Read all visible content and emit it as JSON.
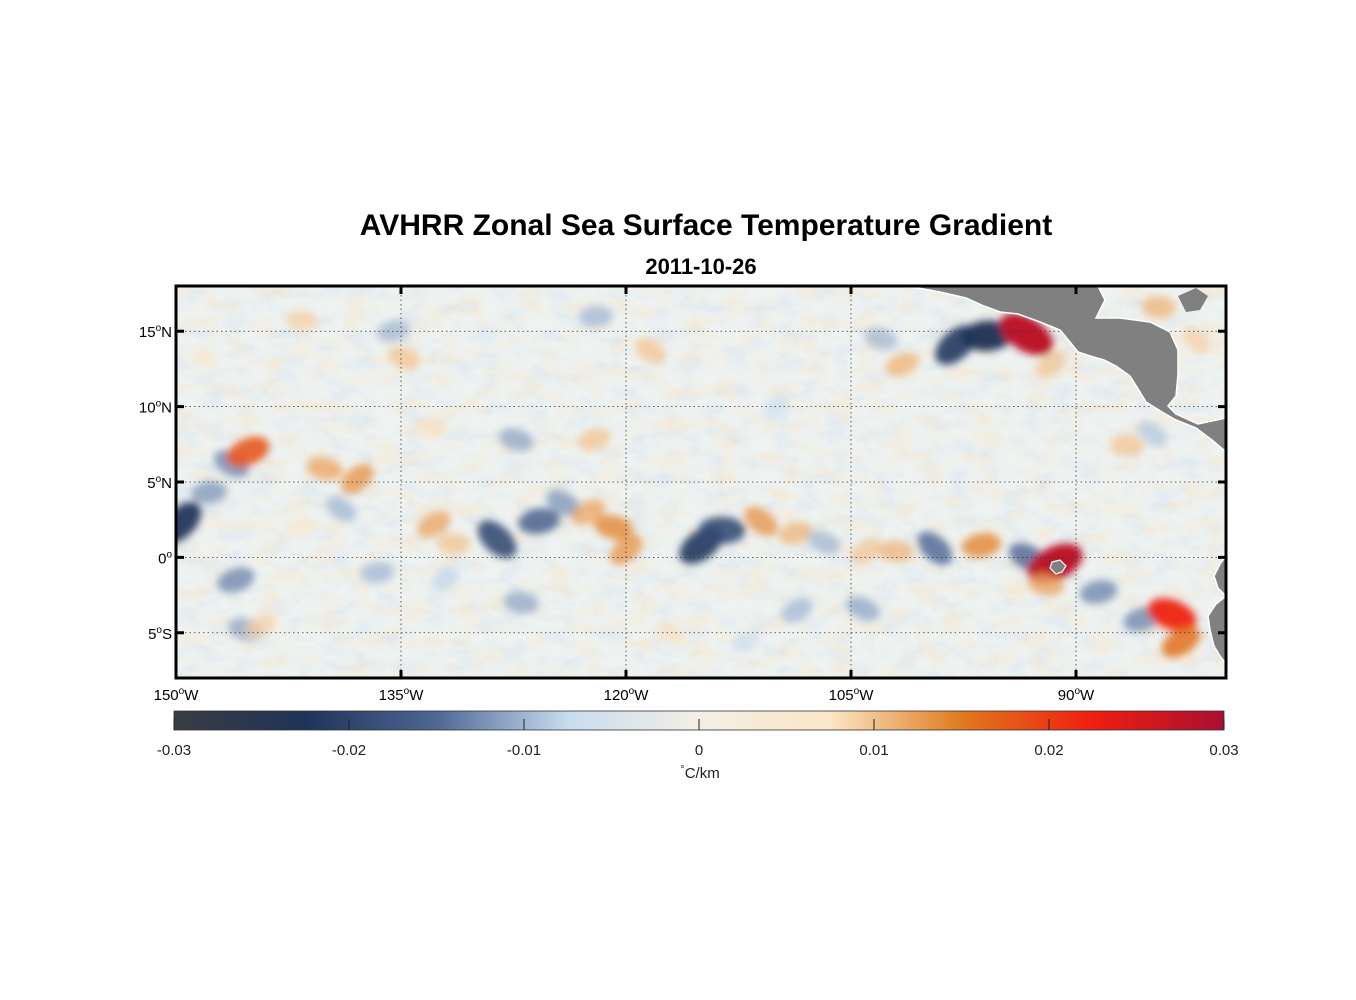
{
  "title": "AVHRR Zonal Sea Surface Temperature Gradient",
  "subtitle": "2011-10-26",
  "map": {
    "lon_range": [
      -150,
      -80
    ],
    "lat_range": [
      -8,
      18
    ],
    "grid": true,
    "land_color": "#808080",
    "lat_ticks": [
      {
        "value": 15,
        "num": "15",
        "hemi": "N"
      },
      {
        "value": 10,
        "num": "10",
        "hemi": "N"
      },
      {
        "value": 5,
        "num": "5",
        "hemi": "N"
      },
      {
        "value": 0,
        "num": "0",
        "hemi": ""
      },
      {
        "value": -5,
        "num": "5",
        "hemi": "S"
      }
    ],
    "lon_ticks": [
      {
        "value": -150,
        "num": "150",
        "hemi": "W"
      },
      {
        "value": -135,
        "num": "135",
        "hemi": "W"
      },
      {
        "value": -120,
        "num": "120",
        "hemi": "W"
      },
      {
        "value": -105,
        "num": "105",
        "hemi": "W"
      },
      {
        "value": -90,
        "num": "90",
        "hemi": "W"
      }
    ],
    "features": [
      {
        "lon": -149.7,
        "lat": 2.3,
        "v": -0.022
      },
      {
        "lon": -147.8,
        "lat": 4.3,
        "v": -0.012
      },
      {
        "lon": -146.3,
        "lat": 6.2,
        "v": -0.013
      },
      {
        "lon": -145.2,
        "lat": 7.0,
        "v": 0.018
      },
      {
        "lon": -140.1,
        "lat": 5.9,
        "v": 0.012
      },
      {
        "lon": -137.9,
        "lat": 5.2,
        "v": 0.013
      },
      {
        "lon": -141.8,
        "lat": 2.0,
        "v": 0.006
      },
      {
        "lon": -139.0,
        "lat": 3.2,
        "v": -0.01
      },
      {
        "lon": -146.0,
        "lat": -1.5,
        "v": -0.013
      },
      {
        "lon": -145.4,
        "lat": -4.8,
        "v": -0.011
      },
      {
        "lon": -144.4,
        "lat": -4.6,
        "v": 0.009
      },
      {
        "lon": -141.6,
        "lat": 15.7,
        "v": 0.009
      },
      {
        "lon": -148.0,
        "lat": 13.2,
        "v": 0.006
      },
      {
        "lon": -135.5,
        "lat": 15.0,
        "v": -0.01
      },
      {
        "lon": -134.8,
        "lat": 13.2,
        "v": 0.01
      },
      {
        "lon": -132.8,
        "lat": 2.2,
        "v": 0.012
      },
      {
        "lon": -131.5,
        "lat": 0.9,
        "v": 0.01
      },
      {
        "lon": -128.6,
        "lat": 1.2,
        "v": -0.019
      },
      {
        "lon": -125.8,
        "lat": 2.4,
        "v": -0.016
      },
      {
        "lon": -124.2,
        "lat": 3.6,
        "v": -0.012
      },
      {
        "lon": -122.5,
        "lat": 3.0,
        "v": 0.012
      },
      {
        "lon": -120.8,
        "lat": 2.0,
        "v": 0.014
      },
      {
        "lon": -120.0,
        "lat": 0.5,
        "v": 0.013
      },
      {
        "lon": -122.0,
        "lat": 16.0,
        "v": -0.01
      },
      {
        "lon": -118.4,
        "lat": 13.7,
        "v": 0.01
      },
      {
        "lon": -122.1,
        "lat": 7.8,
        "v": 0.01
      },
      {
        "lon": -127.3,
        "lat": 7.8,
        "v": -0.011
      },
      {
        "lon": -115.0,
        "lat": 0.8,
        "v": -0.021
      },
      {
        "lon": -113.6,
        "lat": 1.8,
        "v": -0.019
      },
      {
        "lon": -111.0,
        "lat": 2.4,
        "v": 0.013
      },
      {
        "lon": -108.7,
        "lat": 1.6,
        "v": 0.011
      },
      {
        "lon": -106.8,
        "lat": 1.0,
        "v": -0.01
      },
      {
        "lon": -104.0,
        "lat": 0.4,
        "v": 0.01
      },
      {
        "lon": -102.0,
        "lat": 0.4,
        "v": 0.011
      },
      {
        "lon": -99.4,
        "lat": 0.6,
        "v": -0.015
      },
      {
        "lon": -96.3,
        "lat": 0.8,
        "v": 0.014
      },
      {
        "lon": -93.2,
        "lat": 0.0,
        "v": -0.015
      },
      {
        "lon": -91.4,
        "lat": -0.4,
        "v": 0.028
      },
      {
        "lon": -92.0,
        "lat": -1.8,
        "v": 0.012
      },
      {
        "lon": -98.0,
        "lat": 14.1,
        "v": -0.021
      },
      {
        "lon": -95.9,
        "lat": 14.7,
        "v": -0.023
      },
      {
        "lon": -93.3,
        "lat": 14.8,
        "v": 0.028
      },
      {
        "lon": -101.6,
        "lat": 12.8,
        "v": 0.011
      },
      {
        "lon": -103.0,
        "lat": 14.5,
        "v": -0.01
      },
      {
        "lon": -91.7,
        "lat": 12.8,
        "v": 0.01
      },
      {
        "lon": -86.6,
        "lat": 7.4,
        "v": 0.01
      },
      {
        "lon": -84.9,
        "lat": 8.2,
        "v": -0.009
      },
      {
        "lon": -85.6,
        "lat": -4.1,
        "v": -0.013
      },
      {
        "lon": -83.6,
        "lat": -3.8,
        "v": 0.022
      },
      {
        "lon": -83.0,
        "lat": -5.6,
        "v": 0.016
      },
      {
        "lon": -84.5,
        "lat": 16.6,
        "v": 0.011
      },
      {
        "lon": -82.0,
        "lat": 14.4,
        "v": 0.009
      },
      {
        "lon": -88.5,
        "lat": -2.3,
        "v": -0.013
      },
      {
        "lon": -104.2,
        "lat": -3.4,
        "v": -0.011
      },
      {
        "lon": -108.6,
        "lat": -3.5,
        "v": -0.01
      },
      {
        "lon": -127.0,
        "lat": -3.0,
        "v": -0.011
      },
      {
        "lon": -132.0,
        "lat": -1.4,
        "v": -0.008
      },
      {
        "lon": -136.6,
        "lat": -1.0,
        "v": -0.01
      },
      {
        "lon": -117.0,
        "lat": -5.0,
        "v": 0.008
      },
      {
        "lon": -112.0,
        "lat": -5.6,
        "v": -0.007
      },
      {
        "lon": -133.0,
        "lat": 8.6,
        "v": 0.008
      },
      {
        "lon": -110.0,
        "lat": 10.0,
        "v": -0.007
      }
    ]
  },
  "colorbar": {
    "ticks": [
      "-0.03",
      "-0.02",
      "-0.01",
      "0",
      "0.01",
      "0.02",
      "0.03"
    ],
    "range": [
      -0.03,
      0.03
    ],
    "unit_deg": "°",
    "unit_rest": "C/km",
    "colors": [
      "#3a3c44",
      "#1f3358",
      "#4f6794",
      "#c8dcef",
      "#f3efe6",
      "#fbe6c6",
      "#e07a1e",
      "#f01e10",
      "#a80f32"
    ]
  }
}
